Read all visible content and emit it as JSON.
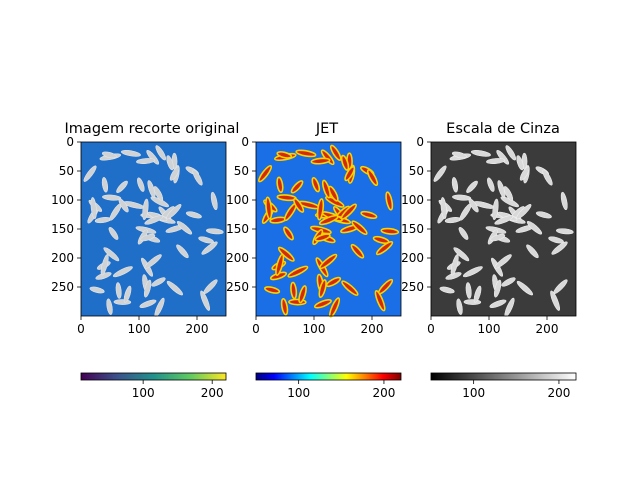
{
  "chart_data": [
    {
      "type": "heatmap",
      "title": "Imagem recorte original",
      "colormap": "viridis",
      "xticks": [
        0,
        100,
        200
      ],
      "yticks": [
        0,
        50,
        100,
        150,
        200,
        250
      ],
      "xlim": [
        0,
        250
      ],
      "ylim": [
        300,
        0
      ],
      "colorbar": {
        "range": [
          10,
          220
        ],
        "ticks": [
          100,
          200
        ],
        "orientation": "horizontal",
        "position": "bottom"
      }
    },
    {
      "type": "heatmap",
      "title": "JET",
      "colormap": "jet",
      "xticks": [
        0,
        100,
        200
      ],
      "yticks": [
        0,
        50,
        100,
        150,
        200,
        250
      ],
      "xlim": [
        0,
        250
      ],
      "ylim": [
        300,
        0
      ],
      "colorbar": {
        "range": [
          50,
          220
        ],
        "ticks": [
          100,
          200
        ],
        "orientation": "horizontal",
        "position": "bottom"
      }
    },
    {
      "type": "heatmap",
      "title": "Escala de Cinza",
      "colormap": "gray",
      "xticks": [
        0,
        100,
        200
      ],
      "yticks": [
        0,
        50,
        100,
        150,
        200,
        250
      ],
      "xlim": [
        0,
        250
      ],
      "ylim": [
        300,
        0
      ],
      "colorbar": {
        "range": [
          50,
          220
        ],
        "ticks": [
          100,
          200
        ],
        "orientation": "horizontal",
        "position": "bottom"
      }
    }
  ]
}
